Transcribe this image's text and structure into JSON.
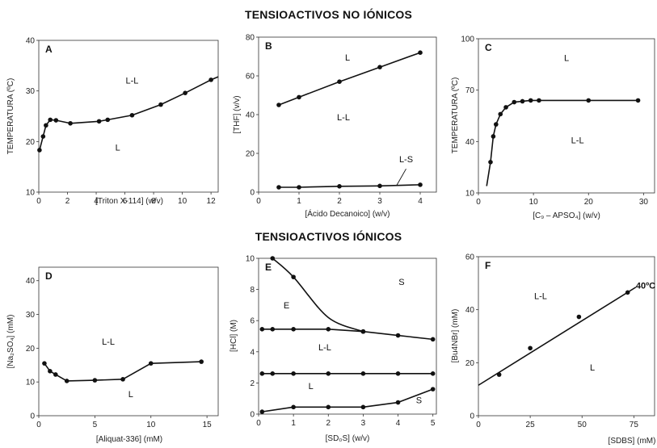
{
  "section_titles": [
    "TENSIOACTIVOS NO IÓNICOS",
    "TENSIOACTIVOS IÓNICOS"
  ],
  "chart_data": [
    {
      "type": "line",
      "panel": "A",
      "xlabel": "[Triton X-114]  (w/v)",
      "ylabel": "TEMPERATURA (ºC)",
      "xlim": [
        0,
        12.5
      ],
      "ylim": [
        10,
        40
      ],
      "xticks": [
        0,
        2,
        4,
        6,
        8,
        10,
        12
      ],
      "yticks": [
        10,
        20,
        30,
        40
      ],
      "series": [
        {
          "x": [
            0.05,
            0.3,
            0.5,
            0.8,
            1.2,
            2.2,
            4.2,
            4.8,
            6.5,
            8.5,
            10.2,
            12.0
          ],
          "y": [
            18.3,
            21.0,
            23.2,
            24.3,
            24.2,
            23.6,
            24.0,
            24.3,
            25.2,
            27.3,
            29.6,
            32.2
          ],
          "markers": [
            true,
            true,
            true,
            true,
            true,
            true,
            true,
            true,
            true,
            true,
            true,
            true
          ]
        }
      ],
      "extra_line": {
        "x": [
          12.0,
          12.5
        ],
        "y": [
          32.2,
          32.8
        ]
      },
      "region_labels": [
        {
          "text": "L-L",
          "x": 6.5,
          "y": 31.5
        },
        {
          "text": "L",
          "x": 5.5,
          "y": 18.2
        }
      ]
    },
    {
      "type": "line",
      "panel": "B",
      "xlabel": "[Ácido Decanoico]  (w/v)",
      "ylabel": "[THF] (v/v)",
      "xlim": [
        0,
        4.4
      ],
      "ylim": [
        0,
        80
      ],
      "xticks": [
        0,
        1,
        2,
        3,
        4
      ],
      "yticks": [
        0,
        20,
        40,
        60,
        80
      ],
      "series": [
        {
          "x": [
            0.5,
            1.0,
            2.0,
            3.0,
            4.0
          ],
          "y": [
            45,
            49,
            57,
            64.5,
            72
          ]
        },
        {
          "x": [
            0.5,
            1.0,
            2.0,
            3.0,
            4.0
          ],
          "y": [
            2.5,
            2.5,
            3.0,
            3.2,
            3.8
          ]
        }
      ],
      "region_labels": [
        {
          "text": "L",
          "x": 2.2,
          "y": 68
        },
        {
          "text": "L-L",
          "x": 2.1,
          "y": 37
        },
        {
          "text": "L-S",
          "x": 3.65,
          "y": 15.5
        }
      ],
      "pointer": {
        "x1": 3.65,
        "y1": 12,
        "x2": 3.42,
        "y2": 3.6
      }
    },
    {
      "type": "line",
      "panel": "C",
      "xlabel": "[C₉ – APSO₄]  (w/v)",
      "ylabel": "TEMPERATURA (ºC)",
      "xlim": [
        0,
        32
      ],
      "ylim": [
        10,
        100
      ],
      "xticks": [
        0,
        10,
        20,
        30
      ],
      "yticks": [
        10,
        40,
        70,
        100
      ],
      "series": [
        {
          "x": [
            1.5,
            2.2,
            2.7,
            3.2,
            4.0,
            5.0,
            6.5,
            8.0,
            9.5,
            11.0,
            20.0,
            29.0
          ],
          "y": [
            14,
            28,
            43,
            50,
            56,
            60,
            63,
            63.5,
            64,
            64,
            64,
            64
          ],
          "markers": [
            false,
            true,
            true,
            true,
            true,
            true,
            true,
            true,
            true,
            true,
            true,
            true
          ]
        }
      ],
      "region_labels": [
        {
          "text": "L",
          "x": 16,
          "y": 87
        },
        {
          "text": "L-L",
          "x": 18,
          "y": 39
        }
      ]
    },
    {
      "type": "line",
      "panel": "D",
      "xlabel": "[Aliquat-336]  (mM)",
      "ylabel": "[Na₂SO₄] (mM)",
      "xlim": [
        0,
        16
      ],
      "ylim": [
        0,
        44
      ],
      "xticks": [
        0,
        5,
        10,
        15
      ],
      "yticks": [
        0,
        10,
        20,
        30,
        40
      ],
      "series": [
        {
          "x": [
            0.5,
            1.0,
            1.5,
            2.5,
            5.0,
            7.5,
            10.0,
            14.5
          ],
          "y": [
            15.5,
            13.2,
            12.2,
            10.3,
            10.5,
            10.8,
            15.5,
            16.0
          ]
        }
      ],
      "region_labels": [
        {
          "text": "L-L",
          "x": 6.2,
          "y": 21
        },
        {
          "text": "L",
          "x": 8.2,
          "y": 5.5
        }
      ]
    },
    {
      "type": "line",
      "panel": "E",
      "xlabel": "[SD₀S]  (w/v)",
      "ylabel": "[HCl] (M)",
      "xlim": [
        0,
        5.1
      ],
      "ylim": [
        0,
        10
      ],
      "xticks": [
        0,
        1,
        2,
        3,
        4,
        5
      ],
      "yticks": [
        0,
        2,
        4,
        6,
        8,
        10
      ],
      "series": [
        {
          "x": [
            0.4,
            1.0,
            2.0,
            3.0
          ],
          "y": [
            10,
            8.8,
            6.2,
            5.3
          ],
          "markers": [
            true,
            true,
            false,
            true
          ],
          "smooth": true
        },
        {
          "x": [
            0.1,
            0.4,
            1.0,
            2.0,
            3.0,
            4.0,
            5.0
          ],
          "y": [
            5.45,
            5.45,
            5.45,
            5.45,
            5.3,
            5.05,
            4.8
          ]
        },
        {
          "x": [
            0.1,
            0.4,
            1.0,
            2.0,
            3.0,
            4.0,
            5.0
          ],
          "y": [
            2.6,
            2.6,
            2.6,
            2.6,
            2.6,
            2.6,
            2.6
          ]
        },
        {
          "x": [
            0.1,
            1.0,
            2.0,
            3.0,
            4.0,
            5.0
          ],
          "y": [
            0.15,
            0.45,
            0.45,
            0.45,
            0.75,
            1.6
          ]
        }
      ],
      "region_labels": [
        {
          "text": "S",
          "x": 4.1,
          "y": 8.3
        },
        {
          "text": "E",
          "x": 0.8,
          "y": 6.8
        },
        {
          "text": "L-L",
          "x": 1.9,
          "y": 4.1
        },
        {
          "text": "L",
          "x": 1.5,
          "y": 1.6
        },
        {
          "text": "S",
          "x": 4.6,
          "y": 0.7
        }
      ]
    },
    {
      "type": "line",
      "panel": "F",
      "xlabel": "[SDBS] (mM)",
      "ylabel": "[Bu4NBr] (mM)",
      "xlim": [
        0,
        85
      ],
      "ylim": [
        0,
        60
      ],
      "xticks": [
        0,
        25,
        50,
        75
      ],
      "yticks": [
        0,
        20,
        40,
        60
      ],
      "series": [
        {
          "x": [
            10,
            25,
            48.5,
            72
          ],
          "y": [
            15.5,
            25.5,
            37.3,
            46.5
          ],
          "markers": [
            true,
            true,
            true,
            true
          ]
        }
      ],
      "fit_line": {
        "x": [
          0,
          76
        ],
        "y": [
          11.5,
          48.5
        ]
      },
      "annotation": {
        "text": "40ºC",
        "x": 76,
        "y": 48
      },
      "region_labels": [
        {
          "text": "L-L",
          "x": 30,
          "y": 44
        },
        {
          "text": "L",
          "x": 55,
          "y": 17
        }
      ]
    }
  ]
}
